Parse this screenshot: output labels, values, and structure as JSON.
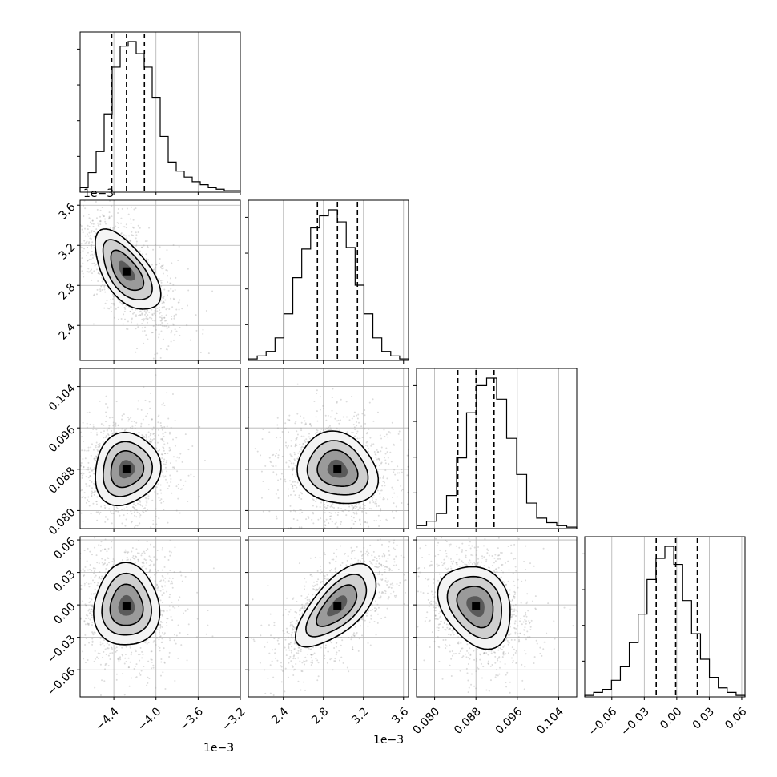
{
  "chart_data": {
    "type": "corner",
    "params": [
      {
        "key": "p0",
        "range": [
          -4.72,
          -3.2
        ],
        "ticks": [
          -4.4,
          -4.0,
          -3.6,
          -3.2
        ],
        "tick_labels": [
          "−4.4",
          "−4.0",
          "−3.6",
          "−3.2"
        ],
        "offset_text": "1e−3",
        "quantiles": [
          -4.42,
          -4.28,
          -4.11
        ]
      },
      {
        "key": "p1",
        "range": [
          2.05,
          3.65
        ],
        "ticks": [
          2.4,
          2.8,
          3.2,
          3.6
        ],
        "tick_labels": [
          "2.4",
          "2.8",
          "3.2",
          "3.6"
        ],
        "offset_text": "1e−3",
        "quantiles": [
          2.74,
          2.94,
          3.14
        ]
      },
      {
        "key": "p2",
        "range": [
          0.0765,
          0.1075
        ],
        "ticks": [
          0.08,
          0.088,
          0.096,
          0.104
        ],
        "tick_labels": [
          "0.080",
          "0.088",
          "0.096",
          "0.104"
        ],
        "offset_text": "",
        "quantiles": [
          0.0845,
          0.088,
          0.0915
        ]
      },
      {
        "key": "p3",
        "range": [
          -0.085,
          0.063
        ],
        "ticks": [
          -0.06,
          -0.03,
          0.0,
          0.03,
          0.06
        ],
        "tick_labels": [
          "−0.06",
          "−0.03",
          "0.00",
          "0.03",
          "0.06"
        ],
        "offset_text": "",
        "quantiles": [
          -0.019,
          -0.001,
          0.019
        ]
      }
    ],
    "histograms": [
      [
        0.03,
        0.13,
        0.27,
        0.52,
        0.83,
        0.97,
        1.0,
        0.92,
        0.83,
        0.63,
        0.37,
        0.2,
        0.14,
        0.1,
        0.07,
        0.05,
        0.03,
        0.02,
        0.01,
        0.01
      ],
      [
        0.01,
        0.03,
        0.06,
        0.15,
        0.31,
        0.55,
        0.74,
        0.88,
        0.96,
        1.0,
        0.92,
        0.75,
        0.5,
        0.31,
        0.15,
        0.06,
        0.03,
        0.01
      ],
      [
        0.02,
        0.05,
        0.1,
        0.22,
        0.47,
        0.77,
        0.95,
        1.0,
        0.86,
        0.6,
        0.36,
        0.17,
        0.07,
        0.04,
        0.02,
        0.01
      ],
      [
        0.01,
        0.03,
        0.05,
        0.11,
        0.2,
        0.36,
        0.55,
        0.78,
        0.92,
        1.0,
        0.88,
        0.64,
        0.42,
        0.25,
        0.13,
        0.06,
        0.03,
        0.01
      ]
    ],
    "correlations": {
      "1-0": -0.6,
      "2-0": 0.1,
      "2-1": -0.15,
      "3-0": 0.0,
      "3-1": 0.65,
      "3-2": -0.25
    },
    "grid": true
  }
}
